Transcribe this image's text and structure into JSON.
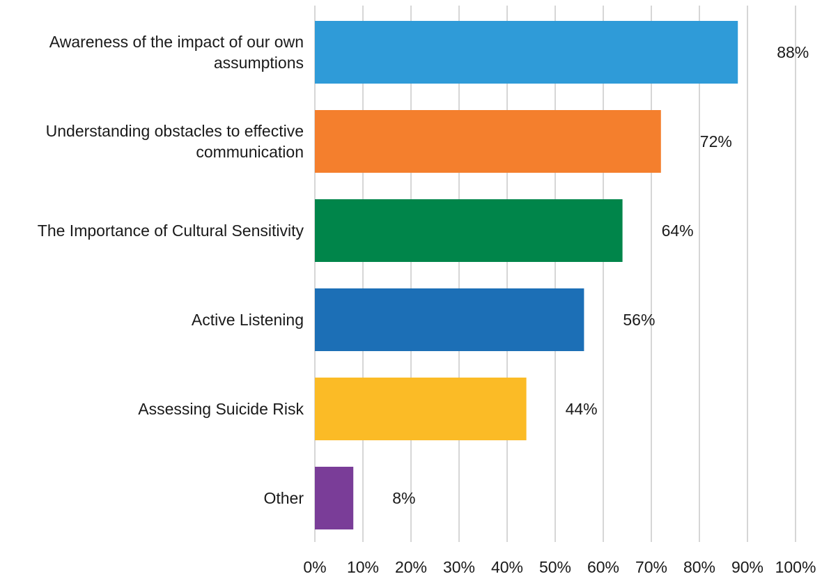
{
  "chart_data": {
    "type": "bar",
    "orientation": "horizontal",
    "categories": [
      [
        "Awareness of the impact of our own",
        "assumptions"
      ],
      [
        "Understanding obstacles to effective",
        "communication"
      ],
      [
        "The Importance of Cultural Sensitivity"
      ],
      [
        "Active Listening"
      ],
      [
        "Assessing Suicide Risk"
      ],
      [
        "Other"
      ]
    ],
    "values": [
      88,
      72,
      64,
      56,
      44,
      8
    ],
    "value_labels": [
      "88%",
      "72%",
      "64%",
      "56%",
      "44%",
      "8%"
    ],
    "colors": [
      "#2f9bd8",
      "#f47f2d",
      "#00854a",
      "#1c6fb6",
      "#fbbb26",
      "#7a3d98"
    ],
    "xlim": [
      0,
      100
    ],
    "xticks": [
      "0%",
      "10%",
      "20%",
      "30%",
      "40%",
      "50%",
      "60%",
      "70%",
      "80%",
      "90%",
      "100%"
    ],
    "grid": true,
    "legend": "none"
  }
}
